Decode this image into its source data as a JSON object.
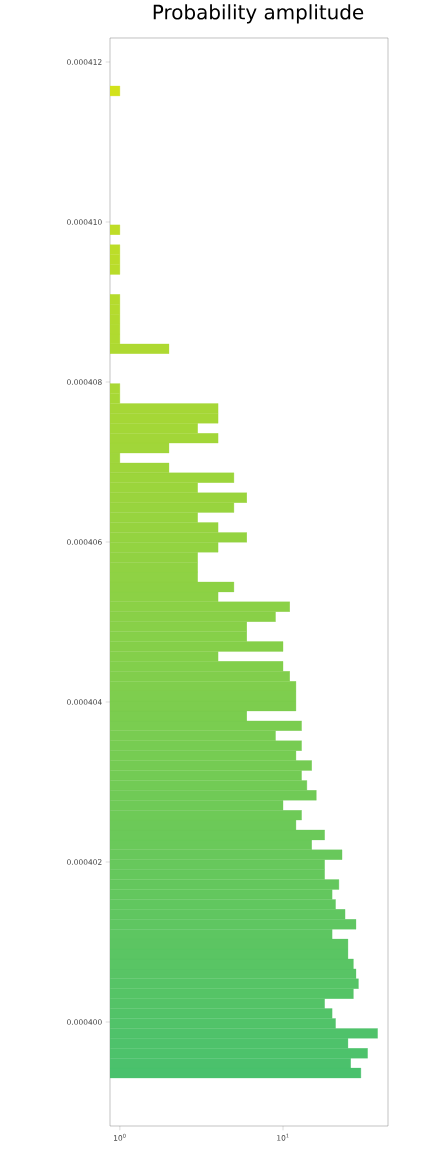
{
  "chart_data": {
    "type": "histogram",
    "orientation": "horizontal",
    "log": "x",
    "title": "Probability amplitude",
    "bins": [
      0.0003993,
      0.000399424,
      0.000399548,
      0.000399672,
      0.000399796,
      0.00039992,
      0.000400044,
      0.000400168,
      0.000400292,
      0.000400416,
      0.00040054,
      0.000400664,
      0.000400788,
      0.000400912,
      0.000401036,
      0.00040116,
      0.000401284,
      0.000401408,
      0.000401532,
      0.000401656,
      0.00040178,
      0.000401904,
      0.000402028,
      0.000402152,
      0.000402276,
      0.0004024,
      0.000402524,
      0.000402648,
      0.000402772,
      0.000402896,
      0.00040302,
      0.000403144,
      0.000403268,
      0.000403392,
      0.000403516,
      0.00040364,
      0.000403764,
      0.000403888,
      0.000404012,
      0.000404136,
      0.00040426,
      0.000404384,
      0.000404508,
      0.000404632,
      0.000404756,
      0.00040488,
      0.000405004,
      0.000405128,
      0.000405252,
      0.000405376,
      0.0004055,
      0.000405624,
      0.000405748,
      0.000405872,
      0.000405996,
      0.00040612,
      0.000406244,
      0.000406368,
      0.000406492,
      0.000406616,
      0.00040674,
      0.000406864,
      0.000406988,
      0.000407112,
      0.000407236,
      0.00040736,
      0.000407484,
      0.000407608,
      0.000407732,
      0.000407856,
      0.00040798,
      0.000408104,
      0.000408228,
      0.000408352,
      0.000408476,
      0.0004086,
      0.000408724,
      0.000408848,
      0.000408972,
      0.000409096,
      0.00040922,
      0.000409344,
      0.000409468,
      0.000409592,
      0.000409716,
      0.00040984,
      0.000409964,
      0.000410088,
      0.000410212,
      0.000410336,
      0.00041046,
      0.000410584,
      0.000410708,
      0.000410832,
      0.000410956,
      0.00041108,
      0.000411204,
      0.000411328,
      0.000411452,
      0.000411576,
      0.0004117
    ],
    "values": [
      30,
      26,
      33,
      25,
      38,
      21,
      20,
      18,
      27,
      29,
      28,
      27,
      25,
      25,
      20,
      28,
      24,
      21,
      20,
      22,
      18,
      18,
      23,
      15,
      18,
      12,
      13,
      10,
      16,
      14,
      13,
      15,
      12,
      13,
      9,
      13,
      6,
      12,
      12,
      12,
      11,
      10,
      4,
      10,
      6,
      6,
      9,
      11,
      4,
      5,
      3,
      3,
      3,
      4,
      6,
      4,
      3,
      5,
      6,
      3,
      5,
      2,
      1,
      2,
      4,
      3,
      4,
      4,
      1,
      1,
      null,
      null,
      null,
      2,
      1,
      1,
      1,
      1,
      1,
      null,
      null,
      1,
      1,
      1,
      null,
      1,
      null,
      null,
      null,
      null,
      null,
      null,
      null,
      null,
      null,
      null,
      null,
      null,
      null,
      1
    ],
    "colors": [
      "#4ac16d",
      "#4bc16c",
      "#4dc26b",
      "#4ec26b",
      "#4fc26a",
      "#51c369",
      "#52c368",
      "#54c367",
      "#55c466",
      "#56c466",
      "#58c465",
      "#59c564",
      "#5ac563",
      "#5cc562",
      "#5dc661",
      "#5fc661",
      "#60c660",
      "#61c75f",
      "#63c75e",
      "#64c75d",
      "#65c85c",
      "#67c85c",
      "#68c85b",
      "#6ac95a",
      "#6bc959",
      "#6cc958",
      "#6eca57",
      "#6fca57",
      "#70ca56",
      "#72cb55",
      "#73cb54",
      "#75cb53",
      "#76cc52",
      "#77cc52",
      "#79cc51",
      "#7acd50",
      "#7bcd4f",
      "#7dcd4e",
      "#7ece4e",
      "#80ce4d",
      "#81ce4c",
      "#82cf4b",
      "#84cf4a",
      "#85cf49",
      "#86d049",
      "#88d048",
      "#89d047",
      "#8bd146",
      "#8cd145",
      "#8dd144",
      "#8fd244",
      "#90d243",
      "#91d242",
      "#93d341",
      "#94d340",
      "#96d33f",
      "#97d43f",
      "#98d43e",
      "#9ad43d",
      "#9bd53c",
      "#9cd53b",
      "#9ed53a",
      "#9fd63a",
      "#a1d639",
      "#a2d638",
      "#a3d737",
      "#a5d736",
      "#a6d736",
      "#a7d835",
      "#a9d834",
      "#aad833",
      "#acd932",
      "#add931",
      "#aed931",
      "#b0da30",
      "#b1da2f",
      "#b2da2e",
      "#b4db2d",
      "#b5db2c",
      "#b7db2c",
      "#b8dc2b",
      "#b9dc2a",
      "#bbdc29",
      "#bcdd28",
      "#bddd27",
      "#bfdd27",
      "#c0de26",
      "#c2de25",
      "#c3de24",
      "#c4df23",
      "#c6df22",
      "#c7df22",
      "#c8e021",
      "#cae020",
      "#cbe01f",
      "#cde11e",
      "#cee11d",
      "#cfe11d",
      "#d1e21c",
      "#d2e21b"
    ],
    "xlim": [
      0.87,
      44
    ],
    "ylim": [
      0.0003987,
      0.0004123
    ],
    "xticks": [
      {
        "value": 1,
        "label": "10$^{0}$"
      },
      {
        "value": 10,
        "label": "10$^{1}$"
      }
    ],
    "yticks": [
      {
        "value": 0.0004,
        "label": "0.000400"
      },
      {
        "value": 0.000402,
        "label": "0.000402"
      },
      {
        "value": 0.000404,
        "label": "0.000404"
      },
      {
        "value": 0.000406,
        "label": "0.000406"
      },
      {
        "value": 0.000408,
        "label": "0.000408"
      },
      {
        "value": 0.00041,
        "label": "0.000410"
      },
      {
        "value": 0.000412,
        "label": "0.000412"
      }
    ]
  }
}
